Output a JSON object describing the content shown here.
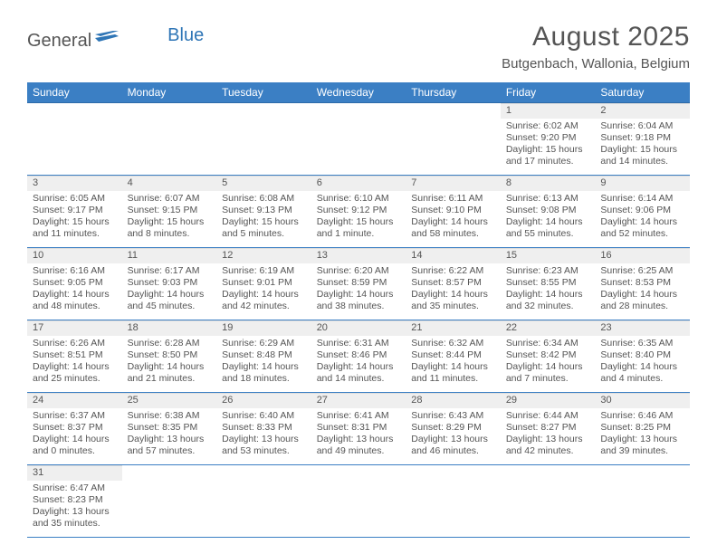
{
  "logo": {
    "general": "General",
    "blue": "Blue"
  },
  "title": "August 2025",
  "location": "Butgenbach, Wallonia, Belgium",
  "colors": {
    "header_bg": "#3b7fc4",
    "header_text": "#ffffff",
    "border": "#3b7fc4",
    "daynum_bg": "#efefef",
    "text": "#555555",
    "logo_blue": "#2e75b6"
  },
  "day_headers": [
    "Sunday",
    "Monday",
    "Tuesday",
    "Wednesday",
    "Thursday",
    "Friday",
    "Saturday"
  ],
  "weeks": [
    [
      {
        "n": "",
        "sr": "",
        "ss": "",
        "dl": ""
      },
      {
        "n": "",
        "sr": "",
        "ss": "",
        "dl": ""
      },
      {
        "n": "",
        "sr": "",
        "ss": "",
        "dl": ""
      },
      {
        "n": "",
        "sr": "",
        "ss": "",
        "dl": ""
      },
      {
        "n": "",
        "sr": "",
        "ss": "",
        "dl": ""
      },
      {
        "n": "1",
        "sr": "Sunrise: 6:02 AM",
        "ss": "Sunset: 9:20 PM",
        "dl": "Daylight: 15 hours and 17 minutes."
      },
      {
        "n": "2",
        "sr": "Sunrise: 6:04 AM",
        "ss": "Sunset: 9:18 PM",
        "dl": "Daylight: 15 hours and 14 minutes."
      }
    ],
    [
      {
        "n": "3",
        "sr": "Sunrise: 6:05 AM",
        "ss": "Sunset: 9:17 PM",
        "dl": "Daylight: 15 hours and 11 minutes."
      },
      {
        "n": "4",
        "sr": "Sunrise: 6:07 AM",
        "ss": "Sunset: 9:15 PM",
        "dl": "Daylight: 15 hours and 8 minutes."
      },
      {
        "n": "5",
        "sr": "Sunrise: 6:08 AM",
        "ss": "Sunset: 9:13 PM",
        "dl": "Daylight: 15 hours and 5 minutes."
      },
      {
        "n": "6",
        "sr": "Sunrise: 6:10 AM",
        "ss": "Sunset: 9:12 PM",
        "dl": "Daylight: 15 hours and 1 minute."
      },
      {
        "n": "7",
        "sr": "Sunrise: 6:11 AM",
        "ss": "Sunset: 9:10 PM",
        "dl": "Daylight: 14 hours and 58 minutes."
      },
      {
        "n": "8",
        "sr": "Sunrise: 6:13 AM",
        "ss": "Sunset: 9:08 PM",
        "dl": "Daylight: 14 hours and 55 minutes."
      },
      {
        "n": "9",
        "sr": "Sunrise: 6:14 AM",
        "ss": "Sunset: 9:06 PM",
        "dl": "Daylight: 14 hours and 52 minutes."
      }
    ],
    [
      {
        "n": "10",
        "sr": "Sunrise: 6:16 AM",
        "ss": "Sunset: 9:05 PM",
        "dl": "Daylight: 14 hours and 48 minutes."
      },
      {
        "n": "11",
        "sr": "Sunrise: 6:17 AM",
        "ss": "Sunset: 9:03 PM",
        "dl": "Daylight: 14 hours and 45 minutes."
      },
      {
        "n": "12",
        "sr": "Sunrise: 6:19 AM",
        "ss": "Sunset: 9:01 PM",
        "dl": "Daylight: 14 hours and 42 minutes."
      },
      {
        "n": "13",
        "sr": "Sunrise: 6:20 AM",
        "ss": "Sunset: 8:59 PM",
        "dl": "Daylight: 14 hours and 38 minutes."
      },
      {
        "n": "14",
        "sr": "Sunrise: 6:22 AM",
        "ss": "Sunset: 8:57 PM",
        "dl": "Daylight: 14 hours and 35 minutes."
      },
      {
        "n": "15",
        "sr": "Sunrise: 6:23 AM",
        "ss": "Sunset: 8:55 PM",
        "dl": "Daylight: 14 hours and 32 minutes."
      },
      {
        "n": "16",
        "sr": "Sunrise: 6:25 AM",
        "ss": "Sunset: 8:53 PM",
        "dl": "Daylight: 14 hours and 28 minutes."
      }
    ],
    [
      {
        "n": "17",
        "sr": "Sunrise: 6:26 AM",
        "ss": "Sunset: 8:51 PM",
        "dl": "Daylight: 14 hours and 25 minutes."
      },
      {
        "n": "18",
        "sr": "Sunrise: 6:28 AM",
        "ss": "Sunset: 8:50 PM",
        "dl": "Daylight: 14 hours and 21 minutes."
      },
      {
        "n": "19",
        "sr": "Sunrise: 6:29 AM",
        "ss": "Sunset: 8:48 PM",
        "dl": "Daylight: 14 hours and 18 minutes."
      },
      {
        "n": "20",
        "sr": "Sunrise: 6:31 AM",
        "ss": "Sunset: 8:46 PM",
        "dl": "Daylight: 14 hours and 14 minutes."
      },
      {
        "n": "21",
        "sr": "Sunrise: 6:32 AM",
        "ss": "Sunset: 8:44 PM",
        "dl": "Daylight: 14 hours and 11 minutes."
      },
      {
        "n": "22",
        "sr": "Sunrise: 6:34 AM",
        "ss": "Sunset: 8:42 PM",
        "dl": "Daylight: 14 hours and 7 minutes."
      },
      {
        "n": "23",
        "sr": "Sunrise: 6:35 AM",
        "ss": "Sunset: 8:40 PM",
        "dl": "Daylight: 14 hours and 4 minutes."
      }
    ],
    [
      {
        "n": "24",
        "sr": "Sunrise: 6:37 AM",
        "ss": "Sunset: 8:37 PM",
        "dl": "Daylight: 14 hours and 0 minutes."
      },
      {
        "n": "25",
        "sr": "Sunrise: 6:38 AM",
        "ss": "Sunset: 8:35 PM",
        "dl": "Daylight: 13 hours and 57 minutes."
      },
      {
        "n": "26",
        "sr": "Sunrise: 6:40 AM",
        "ss": "Sunset: 8:33 PM",
        "dl": "Daylight: 13 hours and 53 minutes."
      },
      {
        "n": "27",
        "sr": "Sunrise: 6:41 AM",
        "ss": "Sunset: 8:31 PM",
        "dl": "Daylight: 13 hours and 49 minutes."
      },
      {
        "n": "28",
        "sr": "Sunrise: 6:43 AM",
        "ss": "Sunset: 8:29 PM",
        "dl": "Daylight: 13 hours and 46 minutes."
      },
      {
        "n": "29",
        "sr": "Sunrise: 6:44 AM",
        "ss": "Sunset: 8:27 PM",
        "dl": "Daylight: 13 hours and 42 minutes."
      },
      {
        "n": "30",
        "sr": "Sunrise: 6:46 AM",
        "ss": "Sunset: 8:25 PM",
        "dl": "Daylight: 13 hours and 39 minutes."
      }
    ],
    [
      {
        "n": "31",
        "sr": "Sunrise: 6:47 AM",
        "ss": "Sunset: 8:23 PM",
        "dl": "Daylight: 13 hours and 35 minutes."
      },
      {
        "n": "",
        "sr": "",
        "ss": "",
        "dl": ""
      },
      {
        "n": "",
        "sr": "",
        "ss": "",
        "dl": ""
      },
      {
        "n": "",
        "sr": "",
        "ss": "",
        "dl": ""
      },
      {
        "n": "",
        "sr": "",
        "ss": "",
        "dl": ""
      },
      {
        "n": "",
        "sr": "",
        "ss": "",
        "dl": ""
      },
      {
        "n": "",
        "sr": "",
        "ss": "",
        "dl": ""
      }
    ]
  ]
}
